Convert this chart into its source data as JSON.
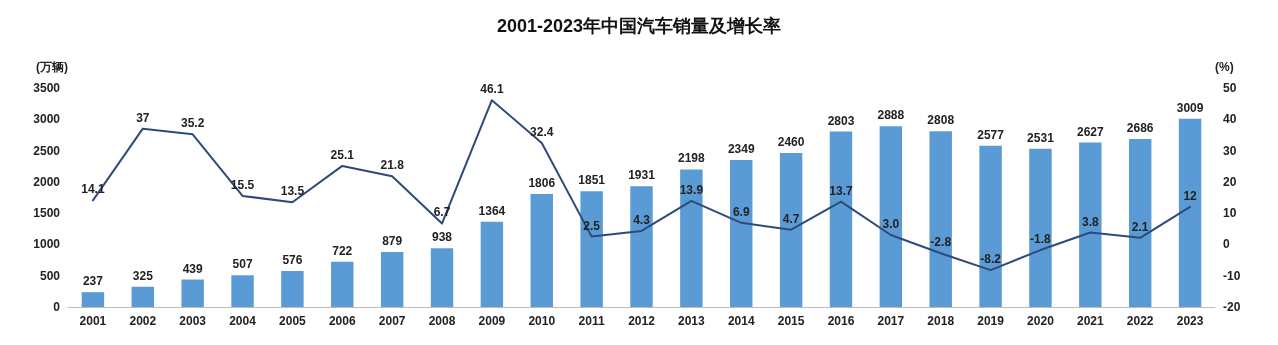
{
  "chart_data": {
    "type": "bar",
    "title": "2001-2023年中国汽车销量及增长率",
    "ylabel": "(万辆)",
    "y2label": "(%)",
    "categories": [
      "2001",
      "2002",
      "2003",
      "2004",
      "2005",
      "2006",
      "2007",
      "2008",
      "2009",
      "2010",
      "2011",
      "2012",
      "2013",
      "2014",
      "2015",
      "2016",
      "2017",
      "2018",
      "2019",
      "2020",
      "2021",
      "2022",
      "2023"
    ],
    "series": [
      {
        "color": "#5b9bd5",
        "values": [
          237,
          325,
          439,
          507,
          576,
          722,
          879,
          938,
          1364,
          1806,
          1851,
          1931,
          2198,
          2349,
          2460,
          2803,
          2888,
          2808,
          2577,
          2531,
          2627,
          2686,
          3009
        ]
      },
      {
        "type": "line",
        "axis": "y2",
        "color": "#2e4a7a",
        "values": [
          14.1,
          37,
          35.2,
          15.5,
          13.5,
          25.1,
          21.8,
          6.7,
          46.1,
          32.4,
          2.5,
          4.3,
          13.9,
          6.9,
          4.7,
          13.7,
          3.0,
          -2.8,
          -8.2,
          -1.8,
          3.8,
          2.1,
          12
        ],
        "value_labels": [
          "14.1",
          "37",
          "35.2",
          "15.5",
          "13.5",
          "25.1",
          "21.8",
          "6.7",
          "46.1",
          "32.4",
          "2.5",
          "4.3",
          "13.9",
          "6.9",
          "4.7",
          "13.7",
          "3.0",
          "-2.8",
          "-8.2",
          "-1.8",
          "3.8",
          "2.1",
          "12"
        ]
      }
    ],
    "ylim": [
      0,
      3500
    ],
    "yticks": [
      0,
      500,
      1000,
      1500,
      2000,
      2500,
      3000,
      3500
    ],
    "y2lim": [
      -20,
      50
    ],
    "y2ticks": [
      -20,
      -10,
      0,
      10,
      20,
      30,
      40,
      50
    ],
    "data_labels": true,
    "grid": false,
    "marker": "none",
    "line_style": "solid"
  }
}
